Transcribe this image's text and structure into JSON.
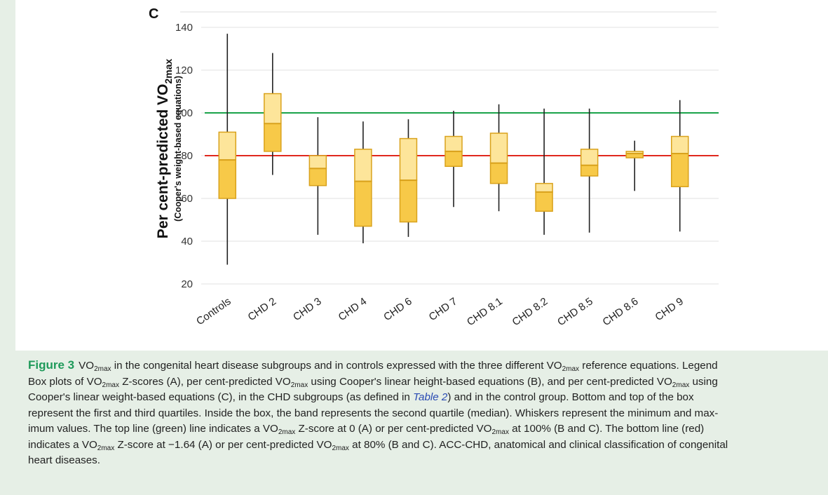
{
  "chart_data": {
    "type": "box",
    "panel_label": "C",
    "ylabel": "Per cent-predicted VO",
    "ylabel_sub": "2max",
    "ylabel_note": "(Cooper's weight-based equations)",
    "ylim": [
      20,
      145
    ],
    "yticks": [
      20,
      40,
      60,
      80,
      100,
      120,
      140
    ],
    "reference_lines": [
      {
        "value": 100,
        "color": "#1aa34a"
      },
      {
        "value": 80,
        "color": "#e0281e"
      }
    ],
    "categories": [
      "Controls",
      "CHD 2",
      "CHD 3",
      "CHD 4",
      "CHD 6",
      "CHD 7",
      "CHD 8.1",
      "CHD 8.2",
      "CHD 8.5",
      "CHD 8.6",
      "CHD 9"
    ],
    "boxes": [
      {
        "min": 29,
        "q1": 60,
        "median": 78,
        "q3": 91,
        "max": 137
      },
      {
        "min": 71,
        "q1": 82,
        "median": 95,
        "q3": 109,
        "max": 128
      },
      {
        "min": 43,
        "q1": 66,
        "median": 74,
        "q3": 80,
        "max": 98
      },
      {
        "min": 39,
        "q1": 47,
        "median": 68,
        "q3": 83,
        "max": 96
      },
      {
        "min": 42,
        "q1": 49,
        "median": 68.5,
        "q3": 88,
        "max": 97
      },
      {
        "min": 56,
        "q1": 75,
        "median": 82,
        "q3": 89,
        "max": 101
      },
      {
        "min": 54,
        "q1": 67,
        "median": 76.5,
        "q3": 90.5,
        "max": 104
      },
      {
        "min": 43,
        "q1": 54,
        "median": 63,
        "q3": 67,
        "max": 102
      },
      {
        "min": 44,
        "q1": 70.5,
        "median": 75.5,
        "q3": 83,
        "max": 102
      },
      {
        "min": 63.5,
        "q1": 79,
        "median": 81,
        "q3": 82,
        "max": 87
      },
      {
        "min": 44.5,
        "q1": 65.5,
        "median": 81,
        "q3": 89,
        "max": 106
      }
    ],
    "colors": {
      "box_upper": "#fde59a",
      "box_lower": "#f7c948",
      "box_edge": "#d9a21c",
      "whisker": "#222222",
      "grid": "#e2e2e2"
    }
  },
  "caption": {
    "fig_label": "Figure 3",
    "l1a": "VO",
    "l1b": "2max",
    "l1c": " in the congenital heart disease subgroups and in controls expressed with the three different VO",
    "l1d": "2max",
    "l1e": " reference equations. Legend",
    "l2a": "Box plots of VO",
    "l2b": "2max",
    "l2c": " Z-scores (A), per cent-predicted VO",
    "l2d": "2max",
    "l2e": " using Cooper's linear height-based equations (B), and per cent-predicted VO",
    "l2f": "2max",
    "l2g": " using",
    "l3a": "Cooper's linear weight-based equations (C), in the CHD subgroups (as defined in ",
    "l3b": "Table 2",
    "l3c": ") and in the control group. Bottom and top of the box",
    "l4": "represent the first and third quartiles. Inside the box, the band represents the second quartile (median). Whiskers represent the minimum and max-",
    "l5a": "imum values. The top line (green) line indicates a VO",
    "l5b": "2max",
    "l5c": " Z-score at 0 (A) or per cent-predicted VO",
    "l5d": "2max",
    "l5e": " at 100% (B and C). The bottom line (red)",
    "l6a": "indicates a VO",
    "l6b": "2max",
    "l6c": " Z-score at −1.64 (A) or per cent-predicted VO",
    "l6d": "2max",
    "l6e": " at 80% (B and C). ACC-CHD, anatomical and clinical classification of congenital",
    "l7": "heart diseases."
  }
}
